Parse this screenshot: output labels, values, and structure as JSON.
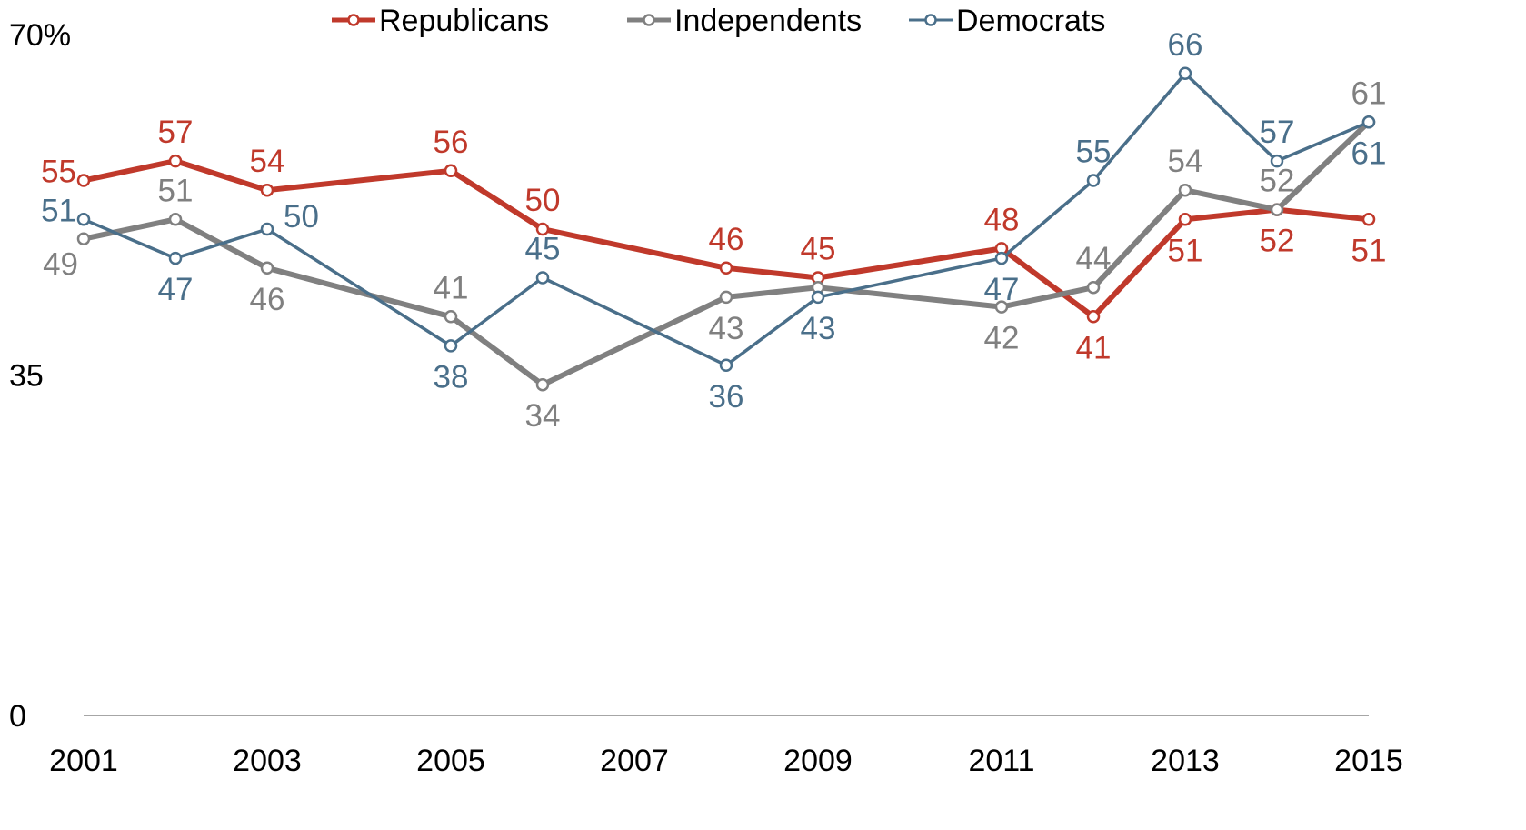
{
  "chart_data": {
    "type": "line",
    "title": "",
    "xlabel": "",
    "ylabel": "",
    "x_tick_labels": [
      "2001",
      "2003",
      "2005",
      "2007",
      "2009",
      "2011",
      "2013",
      "2015"
    ],
    "y_tick_labels": [
      "70%",
      "35",
      "0"
    ],
    "ylim": [
      0,
      70
    ],
    "xlim": [
      2001,
      2015
    ],
    "grid": false,
    "legend_position": "top-center",
    "series": [
      {
        "name": "Republicans",
        "color": "#c0392b",
        "points": [
          {
            "x": 2001,
            "y": 55
          },
          {
            "x": 2002,
            "y": 57
          },
          {
            "x": 2003,
            "y": 54
          },
          {
            "x": 2005,
            "y": 56
          },
          {
            "x": 2006,
            "y": 50
          },
          {
            "x": 2008,
            "y": 46
          },
          {
            "x": 2009,
            "y": 45
          },
          {
            "x": 2011,
            "y": 48
          },
          {
            "x": 2012,
            "y": 41
          },
          {
            "x": 2013,
            "y": 51
          },
          {
            "x": 2014,
            "y": 52
          },
          {
            "x": 2015,
            "y": 51
          }
        ]
      },
      {
        "name": "Independents",
        "color": "#808080",
        "points": [
          {
            "x": 2001,
            "y": 49
          },
          {
            "x": 2002,
            "y": 51
          },
          {
            "x": 2003,
            "y": 46
          },
          {
            "x": 2005,
            "y": 41
          },
          {
            "x": 2006,
            "y": 34
          },
          {
            "x": 2008,
            "y": 43
          },
          {
            "x": 2009,
            "y": 44
          },
          {
            "x": 2011,
            "y": 42
          },
          {
            "x": 2012,
            "y": 44
          },
          {
            "x": 2013,
            "y": 54
          },
          {
            "x": 2014,
            "y": 52
          },
          {
            "x": 2015,
            "y": 61
          }
        ]
      },
      {
        "name": "Democrats",
        "color": "#4a6f8a",
        "points": [
          {
            "x": 2001,
            "y": 51
          },
          {
            "x": 2002,
            "y": 47
          },
          {
            "x": 2003,
            "y": 50
          },
          {
            "x": 2005,
            "y": 38
          },
          {
            "x": 2006,
            "y": 45
          },
          {
            "x": 2008,
            "y": 36
          },
          {
            "x": 2009,
            "y": 43
          },
          {
            "x": 2011,
            "y": 47
          },
          {
            "x": 2012,
            "y": 55
          },
          {
            "x": 2013,
            "y": 66
          },
          {
            "x": 2014,
            "y": 57
          },
          {
            "x": 2015,
            "y": 61
          }
        ]
      }
    ],
    "data_labels": [
      {
        "series": "Republicans",
        "x": 2001,
        "text": "55",
        "pos": "left"
      },
      {
        "series": "Republicans",
        "x": 2002,
        "text": "57",
        "pos": "above"
      },
      {
        "series": "Republicans",
        "x": 2003,
        "text": "54",
        "pos": "above"
      },
      {
        "series": "Republicans",
        "x": 2005,
        "text": "56",
        "pos": "above"
      },
      {
        "series": "Republicans",
        "x": 2006,
        "text": "50",
        "pos": "above"
      },
      {
        "series": "Republicans",
        "x": 2008,
        "text": "46",
        "pos": "above"
      },
      {
        "series": "Republicans",
        "x": 2009,
        "text": "45",
        "pos": "above"
      },
      {
        "series": "Republicans",
        "x": 2011,
        "text": "48",
        "pos": "above"
      },
      {
        "series": "Republicans",
        "x": 2012,
        "text": "41",
        "pos": "below"
      },
      {
        "series": "Republicans",
        "x": 2013,
        "text": "51",
        "pos": "below"
      },
      {
        "series": "Republicans",
        "x": 2014,
        "text": "52",
        "pos": "below"
      },
      {
        "series": "Republicans",
        "x": 2015,
        "text": "51",
        "pos": "below"
      },
      {
        "series": "Independents",
        "x": 2001,
        "text": "49",
        "pos": "below-left"
      },
      {
        "series": "Independents",
        "x": 2002,
        "text": "51",
        "pos": "above"
      },
      {
        "series": "Independents",
        "x": 2003,
        "text": "46",
        "pos": "below"
      },
      {
        "series": "Independents",
        "x": 2005,
        "text": "41",
        "pos": "above"
      },
      {
        "series": "Independents",
        "x": 2006,
        "text": "34",
        "pos": "below"
      },
      {
        "series": "Independents",
        "x": 2008,
        "text": "43",
        "pos": "below"
      },
      {
        "series": "Independents",
        "x": 2011,
        "text": "42",
        "pos": "below"
      },
      {
        "series": "Independents",
        "x": 2012,
        "text": "44",
        "pos": "above"
      },
      {
        "series": "Independents",
        "x": 2013,
        "text": "54",
        "pos": "above"
      },
      {
        "series": "Independents",
        "x": 2014,
        "text": "52",
        "pos": "above"
      },
      {
        "series": "Independents",
        "x": 2015,
        "text": "61",
        "pos": "above"
      },
      {
        "series": "Democrats",
        "x": 2001,
        "text": "51",
        "pos": "left"
      },
      {
        "series": "Democrats",
        "x": 2002,
        "text": "47",
        "pos": "below"
      },
      {
        "series": "Democrats",
        "x": 2003,
        "text": "50",
        "pos": "right"
      },
      {
        "series": "Democrats",
        "x": 2005,
        "text": "38",
        "pos": "below"
      },
      {
        "series": "Democrats",
        "x": 2006,
        "text": "45",
        "pos": "above"
      },
      {
        "series": "Democrats",
        "x": 2008,
        "text": "36",
        "pos": "below"
      },
      {
        "series": "Democrats",
        "x": 2009,
        "text": "43",
        "pos": "below"
      },
      {
        "series": "Democrats",
        "x": 2011,
        "text": "47",
        "pos": "below"
      },
      {
        "series": "Democrats",
        "x": 2012,
        "text": "55",
        "pos": "above"
      },
      {
        "series": "Democrats",
        "x": 2013,
        "text": "66",
        "pos": "above"
      },
      {
        "series": "Democrats",
        "x": 2014,
        "text": "57",
        "pos": "above"
      },
      {
        "series": "Democrats",
        "x": 2015,
        "text": "61",
        "pos": "below"
      }
    ]
  }
}
